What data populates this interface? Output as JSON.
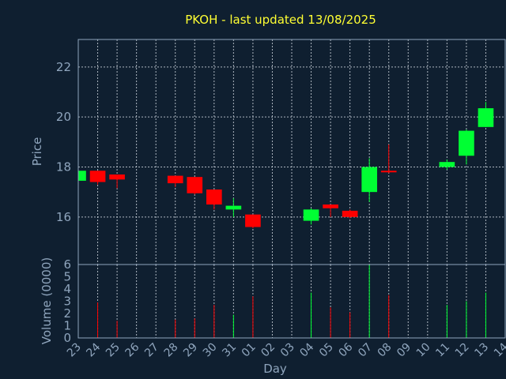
{
  "colors": {
    "background": "#0f1f30",
    "up": "#00ff33",
    "down": "#ff0000",
    "title": "#ffff33",
    "axis": "#8fa5bd"
  },
  "chart_data": {
    "type": "candlestick",
    "title": "PKOH - last updated 13/08/2025",
    "xlabel": "Day",
    "ylabel": "Price",
    "volume_label": "Volume (0000)",
    "grid": true,
    "x_ticks": [
      "23",
      "24",
      "25",
      "26",
      "27",
      "28",
      "29",
      "30",
      "31",
      "01",
      "02",
      "03",
      "04",
      "05",
      "06",
      "07",
      "08",
      "09",
      "10",
      "11",
      "12",
      "13",
      "14"
    ],
    "price_ticks": [
      16,
      18,
      20,
      22
    ],
    "price_range": [
      14.1,
      23.1
    ],
    "volume_ticks": [
      0,
      1,
      2,
      3,
      4,
      5,
      6
    ],
    "volume_range": [
      0,
      6
    ],
    "candles": [
      {
        "day": "23",
        "open": 17.45,
        "high": 17.85,
        "low": 17.45,
        "close": 17.85
      },
      {
        "day": "24",
        "open": 17.85,
        "high": 17.85,
        "low": 17.3,
        "close": 17.4,
        "volume": 2.9
      },
      {
        "day": "25",
        "open": 17.7,
        "high": 17.7,
        "low": 17.15,
        "close": 17.5,
        "volume": 1.4
      },
      {
        "day": "28",
        "open": 17.65,
        "high": 17.65,
        "low": 17.2,
        "close": 17.35,
        "volume": 1.5
      },
      {
        "day": "29",
        "open": 17.6,
        "high": 17.6,
        "low": 16.9,
        "close": 16.95,
        "volume": 1.6
      },
      {
        "day": "30",
        "open": 17.1,
        "high": 17.1,
        "low": 16.3,
        "close": 16.5,
        "volume": 2.7
      },
      {
        "day": "31",
        "open": 16.3,
        "high": 16.75,
        "low": 16.0,
        "close": 16.45,
        "volume": 1.9
      },
      {
        "day": "01",
        "open": 16.1,
        "high": 16.1,
        "low": 15.55,
        "close": 15.6,
        "volume": 3.4
      },
      {
        "day": "04",
        "open": 15.85,
        "high": 16.35,
        "low": 15.7,
        "close": 16.3,
        "volume": 3.7
      },
      {
        "day": "05",
        "open": 16.5,
        "high": 16.5,
        "low": 16.0,
        "close": 16.35,
        "volume": 2.5
      },
      {
        "day": "06",
        "open": 16.25,
        "high": 16.3,
        "low": 15.95,
        "close": 16.0,
        "volume": 2.1
      },
      {
        "day": "07",
        "open": 17.0,
        "high": 18.35,
        "low": 16.6,
        "close": 18.0,
        "volume": 6.0
      },
      {
        "day": "08",
        "open": 17.85,
        "high": 18.9,
        "low": 17.75,
        "close": 17.8,
        "volume": 3.5
      },
      {
        "day": "11",
        "open": 18.0,
        "high": 18.3,
        "low": 17.9,
        "close": 18.2,
        "volume": 2.7
      },
      {
        "day": "12",
        "open": 18.45,
        "high": 19.5,
        "low": 18.1,
        "close": 19.45,
        "volume": 3.0
      },
      {
        "day": "13",
        "open": 19.6,
        "high": 20.6,
        "low": 19.6,
        "close": 20.35,
        "volume": 3.7
      }
    ]
  }
}
